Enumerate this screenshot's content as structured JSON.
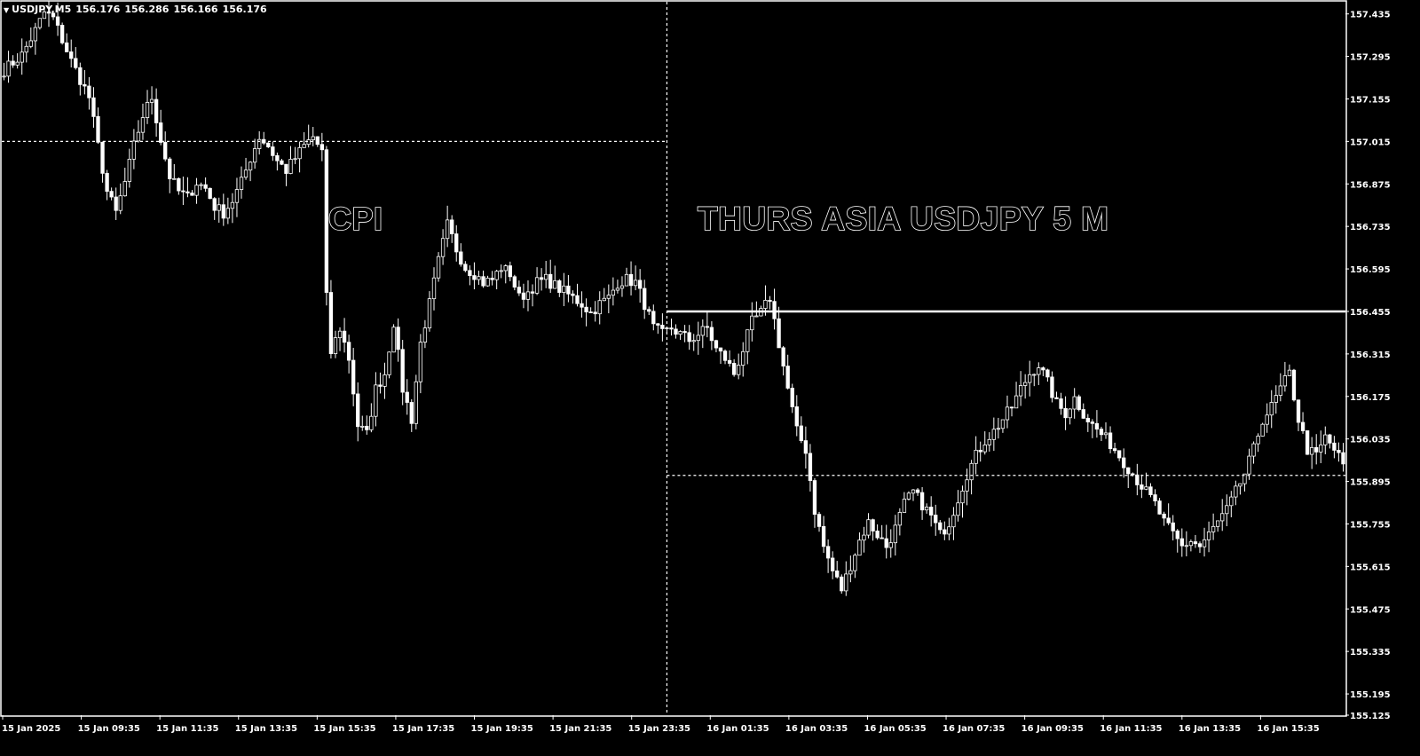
{
  "header": {
    "symbol": "USDJPY,M5",
    "open": "156.176",
    "high": "156.286",
    "low": "156.166",
    "close": "156.176"
  },
  "annotations": {
    "cpi": "CPI",
    "session": "THURS  ASIA USDJPY 5 M"
  },
  "chart_data": {
    "type": "candlestick",
    "colors": {
      "background": "#000000",
      "foreground": "#ffffff"
    },
    "grid": false,
    "ylim": [
      155.125,
      157.475
    ],
    "y_ticks": [
      "157.435",
      "157.295",
      "157.155",
      "157.015",
      "156.875",
      "156.735",
      "156.595",
      "156.455",
      "156.315",
      "156.175",
      "156.035",
      "155.895",
      "155.755",
      "155.615",
      "155.475",
      "155.335",
      "155.195",
      "155.125"
    ],
    "x_ticks": [
      "15 Jan 2025",
      "15 Jan 09:35",
      "15 Jan 11:35",
      "15 Jan 13:35",
      "15 Jan 15:35",
      "15 Jan 17:35",
      "15 Jan 19:35",
      "15 Jan 21:35",
      "15 Jan 23:35",
      "16 Jan 01:35",
      "16 Jan 03:35",
      "16 Jan 05:35",
      "16 Jan 07:35",
      "16 Jan 09:35",
      "16 Jan 11:35",
      "16 Jan 13:35",
      "16 Jan 15:35"
    ],
    "price_path": [
      [
        0,
        157.25
      ],
      [
        4,
        157.3
      ],
      [
        7,
        157.38
      ],
      [
        9,
        157.44
      ],
      [
        11,
        157.42
      ],
      [
        13,
        157.35
      ],
      [
        15,
        157.28
      ],
      [
        17,
        157.22
      ],
      [
        19,
        157.16
      ],
      [
        21,
        157.0
      ],
      [
        23,
        156.85
      ],
      [
        25,
        156.78
      ],
      [
        27,
        156.88
      ],
      [
        29,
        157.0
      ],
      [
        31,
        157.1
      ],
      [
        33,
        157.16
      ],
      [
        35,
        157.02
      ],
      [
        37,
        156.9
      ],
      [
        39,
        156.85
      ],
      [
        41,
        156.83
      ],
      [
        43,
        156.88
      ],
      [
        45,
        156.86
      ],
      [
        47,
        156.8
      ],
      [
        49,
        156.78
      ],
      [
        51,
        156.82
      ],
      [
        53,
        156.88
      ],
      [
        55,
        156.96
      ],
      [
        57,
        157.03
      ],
      [
        59,
        157.0
      ],
      [
        61,
        156.95
      ],
      [
        63,
        156.92
      ],
      [
        65,
        156.96
      ],
      [
        67,
        157.0
      ],
      [
        69,
        157.03
      ],
      [
        71,
        156.98
      ],
      [
        72,
        156.5
      ],
      [
        73,
        156.32
      ],
      [
        75,
        156.4
      ],
      [
        77,
        156.3
      ],
      [
        79,
        156.08
      ],
      [
        81,
        156.05
      ],
      [
        83,
        156.2
      ],
      [
        85,
        156.25
      ],
      [
        87,
        156.42
      ],
      [
        89,
        156.2
      ],
      [
        91,
        156.1
      ],
      [
        93,
        156.35
      ],
      [
        95,
        156.48
      ],
      [
        97,
        156.62
      ],
      [
        99,
        156.74
      ],
      [
        101,
        156.66
      ],
      [
        103,
        156.6
      ],
      [
        105,
        156.58
      ],
      [
        107,
        156.55
      ],
      [
        109,
        156.56
      ],
      [
        111,
        156.6
      ],
      [
        113,
        156.58
      ],
      [
        115,
        156.5
      ],
      [
        117,
        156.52
      ],
      [
        119,
        156.55
      ],
      [
        121,
        156.56
      ],
      [
        123,
        156.54
      ],
      [
        125,
        156.52
      ],
      [
        127,
        156.5
      ],
      [
        129,
        156.48
      ],
      [
        131,
        156.45
      ],
      [
        133,
        156.48
      ],
      [
        135,
        156.5
      ],
      [
        137,
        156.55
      ],
      [
        139,
        156.56
      ],
      [
        141,
        156.55
      ],
      [
        143,
        156.48
      ],
      [
        145,
        156.4
      ],
      [
        147,
        156.38
      ],
      [
        149,
        156.4
      ],
      [
        151,
        156.38
      ],
      [
        153,
        156.36
      ],
      [
        155,
        156.38
      ],
      [
        157,
        156.4
      ],
      [
        159,
        156.33
      ],
      [
        161,
        156.3
      ],
      [
        163,
        156.25
      ],
      [
        165,
        156.33
      ],
      [
        167,
        156.42
      ],
      [
        169,
        156.45
      ],
      [
        171,
        156.5
      ],
      [
        173,
        156.35
      ],
      [
        175,
        156.2
      ],
      [
        177,
        156.06
      ],
      [
        179,
        156.0
      ],
      [
        181,
        155.8
      ],
      [
        183,
        155.68
      ],
      [
        185,
        155.6
      ],
      [
        187,
        155.54
      ],
      [
        189,
        155.62
      ],
      [
        191,
        155.7
      ],
      [
        193,
        155.76
      ],
      [
        195,
        155.72
      ],
      [
        197,
        155.68
      ],
      [
        199,
        155.74
      ],
      [
        201,
        155.82
      ],
      [
        203,
        155.86
      ],
      [
        205,
        155.82
      ],
      [
        207,
        155.78
      ],
      [
        209,
        155.72
      ],
      [
        211,
        155.76
      ],
      [
        213,
        155.84
      ],
      [
        215,
        155.92
      ],
      [
        217,
        155.98
      ],
      [
        219,
        156.03
      ],
      [
        221,
        156.06
      ],
      [
        223,
        156.1
      ],
      [
        225,
        156.14
      ],
      [
        227,
        156.2
      ],
      [
        229,
        156.25
      ],
      [
        231,
        156.28
      ],
      [
        233,
        156.22
      ],
      [
        235,
        156.15
      ],
      [
        237,
        156.12
      ],
      [
        239,
        156.17
      ],
      [
        241,
        156.12
      ],
      [
        243,
        156.08
      ],
      [
        245,
        156.05
      ],
      [
        247,
        156.02
      ],
      [
        249,
        155.98
      ],
      [
        251,
        155.94
      ],
      [
        253,
        155.9
      ],
      [
        255,
        155.86
      ],
      [
        257,
        155.82
      ],
      [
        259,
        155.76
      ],
      [
        261,
        155.72
      ],
      [
        263,
        155.68
      ],
      [
        265,
        155.7
      ],
      [
        267,
        155.68
      ],
      [
        269,
        155.72
      ],
      [
        271,
        155.76
      ],
      [
        273,
        155.8
      ],
      [
        275,
        155.86
      ],
      [
        277,
        155.92
      ],
      [
        279,
        156.0
      ],
      [
        281,
        156.1
      ],
      [
        283,
        156.14
      ],
      [
        285,
        156.2
      ],
      [
        287,
        156.25
      ],
      [
        289,
        156.1
      ],
      [
        291,
        156.0
      ],
      [
        293,
        155.98
      ],
      [
        295,
        156.04
      ],
      [
        297,
        156.0
      ],
      [
        299,
        155.95
      ]
    ]
  }
}
